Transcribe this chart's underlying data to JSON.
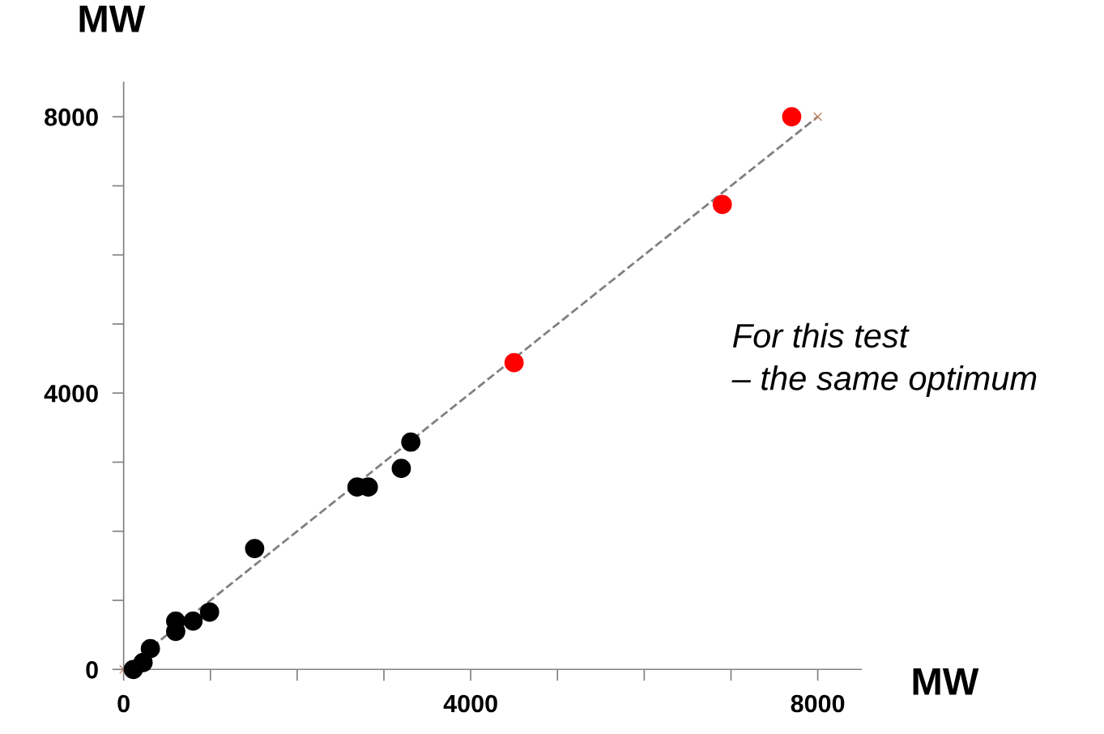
{
  "chart_data": {
    "type": "scatter",
    "xlabel": "MW",
    "ylabel": "MW",
    "xlim": [
      0,
      8500
    ],
    "ylim": [
      0,
      8500
    ],
    "xticks": [
      0,
      {
        "value": 1000,
        "label": null
      },
      {
        "value": 2000,
        "label": null
      },
      {
        "value": 3000,
        "label": null
      },
      4000,
      {
        "value": 5000,
        "label": null
      },
      {
        "value": 6000,
        "label": null
      },
      {
        "value": 7000,
        "label": null
      },
      8000
    ],
    "yticks": [
      0,
      {
        "value": 1000,
        "label": null
      },
      {
        "value": 2000,
        "label": null
      },
      {
        "value": 3000,
        "label": null
      },
      4000,
      {
        "value": 5000,
        "label": null
      },
      {
        "value": 6000,
        "label": null
      },
      {
        "value": 7000,
        "label": null
      },
      8000
    ],
    "grid": false,
    "legend": false,
    "marker": "circle",
    "series": [
      {
        "type": "line",
        "color": "#808080",
        "line_style": "dashed",
        "marker": "cross",
        "x": [
          0,
          8000
        ],
        "values": [
          0,
          8000
        ]
      },
      {
        "color": "#000000",
        "x": [
          112,
          187,
          224,
          308,
          600,
          600,
          800,
          990,
          1510,
          2690,
          2820,
          3200,
          3310
        ],
        "values": [
          0,
          null,
          100,
          300,
          550,
          700,
          700,
          830,
          1750,
          2640,
          2640,
          2910,
          3290
        ]
      },
      {
        "color": "#ff0000",
        "x": [
          4500,
          6900,
          7700
        ],
        "values": [
          4440,
          6730,
          8000
        ]
      }
    ],
    "annotations": [
      "For this test\n– the same optimum"
    ]
  }
}
